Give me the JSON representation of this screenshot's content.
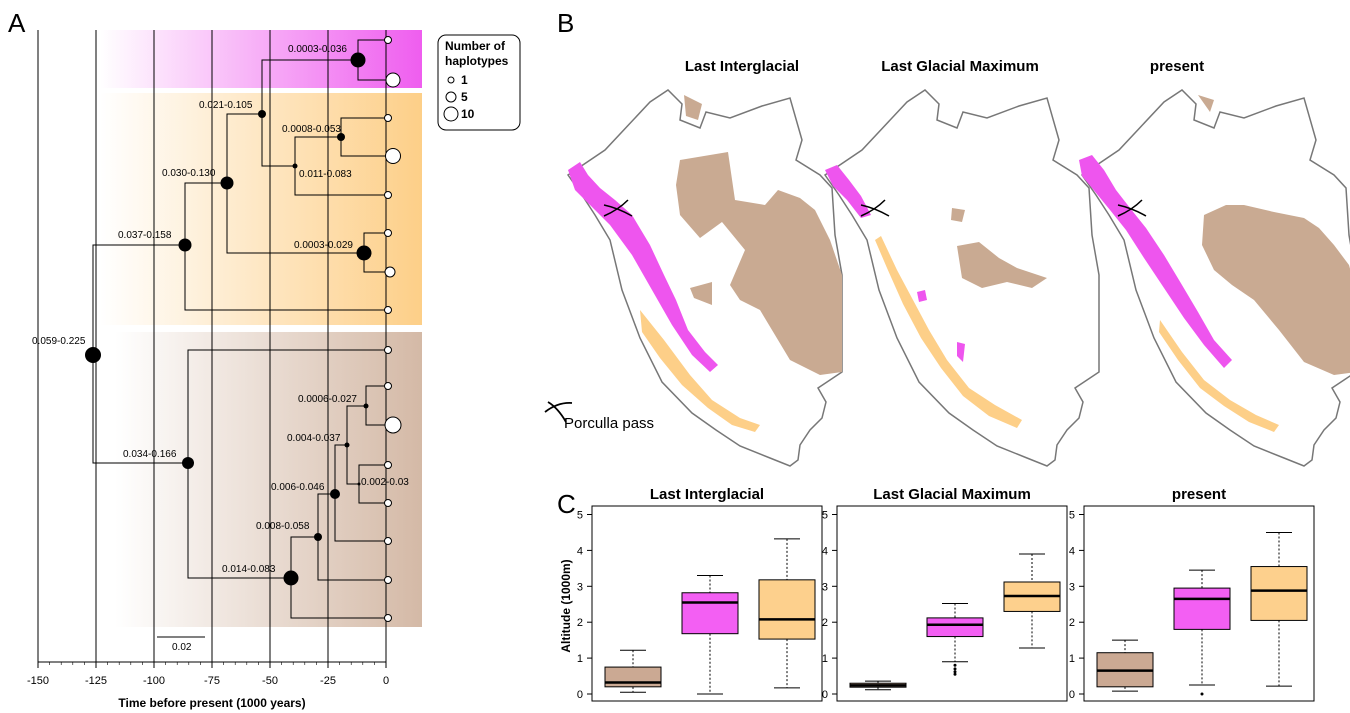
{
  "panel_labels": {
    "a": "A",
    "b": "B",
    "c": "C"
  },
  "colors": {
    "pink": "#ee55ee",
    "orange": "#fdcf88",
    "brown": "#d4b9a6",
    "map_brown": "#c9aa92",
    "box_brown": "#cba993",
    "box_pink": "#f35ff3",
    "box_orange": "#fdd08d"
  },
  "chart_data": [
    {
      "type": "tree",
      "xlabel": "Time before present (1000 years)",
      "xlim": [
        -150,
        0
      ],
      "xticks": [
        -150,
        -125,
        -100,
        -75,
        -50,
        -25,
        0
      ],
      "scale_bar": "0.02",
      "legend": {
        "title_line1": "Number of",
        "title_line2": "haplotypes",
        "items": [
          "1",
          "5",
          "10"
        ]
      },
      "clades": [
        "pink",
        "orange",
        "brown"
      ],
      "nodes": [
        {
          "label": "0.059-0.225",
          "time": -125,
          "size": 10
        },
        {
          "label": "0.037-0.158",
          "time": -86,
          "size": 8
        },
        {
          "label": "0.030-0.130",
          "time": -68,
          "size": 8
        },
        {
          "label": "0.021-0.105",
          "time": -54,
          "size": 5
        },
        {
          "label": "0.0008-0.053",
          "time": -20,
          "size": 5
        },
        {
          "label": "0.011-0.083",
          "time": -40,
          "size": 3
        },
        {
          "label": "0.0003-0.029",
          "time": -10,
          "size": 10
        },
        {
          "label": "0.0003-0.036",
          "time": -12,
          "size": 10
        },
        {
          "label": "0.034-0.166",
          "time": -86,
          "size": 8
        },
        {
          "label": "0.014-0.083",
          "time": -40,
          "size": 10
        },
        {
          "label": "0.008-0.058",
          "time": -29,
          "size": 5
        },
        {
          "label": "0.006-0.046",
          "time": -22,
          "size": 6
        },
        {
          "label": "0.004-0.037",
          "time": -17,
          "size": 3
        },
        {
          "label": "0.0006-0.027",
          "time": -9,
          "size": 3
        },
        {
          "label": "0.002-0.03",
          "time": -12,
          "size": 2
        }
      ]
    },
    {
      "type": "map",
      "panels": [
        "Last Interglacial",
        "Last Glacial Maximum",
        "present"
      ],
      "annotation": "Porculla pass"
    },
    {
      "type": "box",
      "ylabel": "Altitude (1000m)",
      "ylim": [
        0,
        5
      ],
      "yticks": [
        0,
        1,
        2,
        3,
        4,
        5
      ],
      "panels": [
        {
          "title": "Last Interglacial",
          "boxes": [
            {
              "group": "brown",
              "min": 0.05,
              "q1": 0.2,
              "median": 0.32,
              "q3": 0.75,
              "max": 1.22,
              "outliers": []
            },
            {
              "group": "pink",
              "min": 0.0,
              "q1": 1.68,
              "median": 2.55,
              "q3": 2.82,
              "max": 3.3,
              "outliers": []
            },
            {
              "group": "orange",
              "min": 0.17,
              "q1": 1.53,
              "median": 2.08,
              "q3": 3.18,
              "max": 4.32,
              "outliers": []
            }
          ]
        },
        {
          "title": "Last Glacial Maximum",
          "boxes": [
            {
              "group": "brown",
              "min": 0.12,
              "q1": 0.19,
              "median": 0.24,
              "q3": 0.3,
              "max": 0.36,
              "outliers": []
            },
            {
              "group": "pink",
              "min": 0.9,
              "q1": 1.6,
              "median": 1.93,
              "q3": 2.12,
              "max": 2.52,
              "outliers": [
                0.55,
                0.62,
                0.7,
                0.8
              ]
            },
            {
              "group": "orange",
              "min": 1.28,
              "q1": 2.3,
              "median": 2.73,
              "q3": 3.12,
              "max": 3.9,
              "outliers": []
            }
          ]
        },
        {
          "title": "present",
          "boxes": [
            {
              "group": "brown",
              "min": 0.08,
              "q1": 0.2,
              "median": 0.65,
              "q3": 1.15,
              "max": 1.5,
              "outliers": []
            },
            {
              "group": "pink",
              "min": 0.25,
              "q1": 1.8,
              "median": 2.65,
              "q3": 2.95,
              "max": 3.45,
              "outliers": [
                0.0
              ]
            },
            {
              "group": "orange",
              "min": 0.22,
              "q1": 2.05,
              "median": 2.88,
              "q3": 3.55,
              "max": 4.5,
              "outliers": []
            }
          ]
        }
      ]
    }
  ]
}
